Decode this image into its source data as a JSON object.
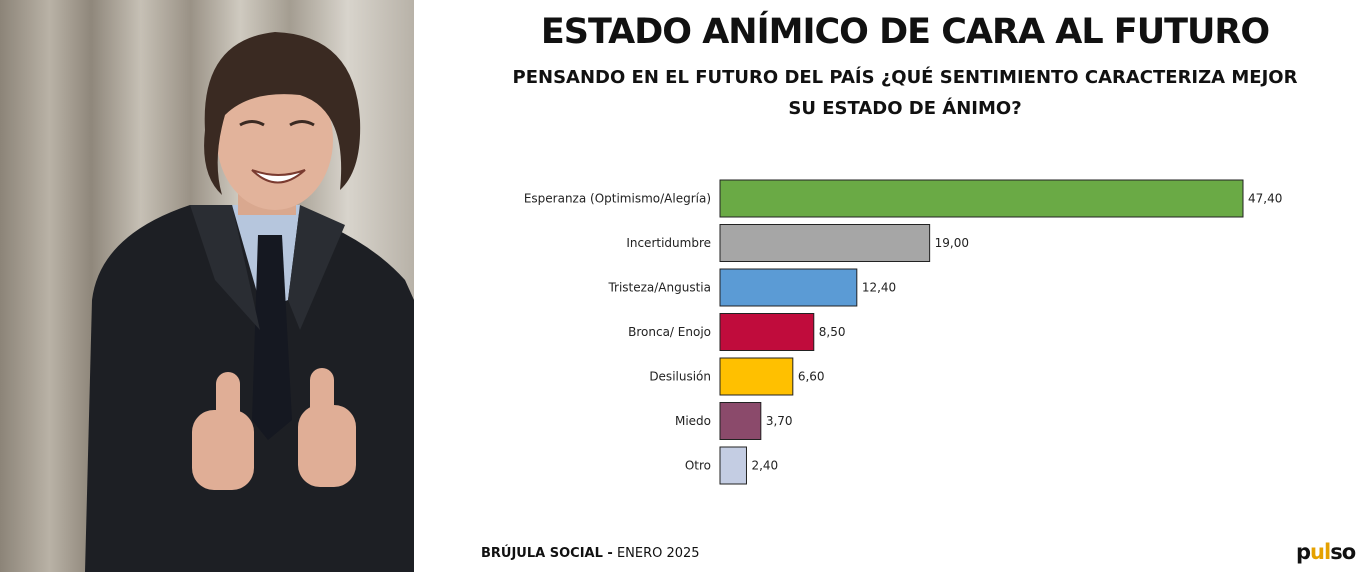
{
  "header": {
    "title": "ESTADO ANÍMICO DE CARA AL FUTURO",
    "subtitle_line1": "PENSANDO EN EL FUTURO DEL PAÍS ¿QUÉ SENTIMIENTO CARACTERIZA MEJOR",
    "subtitle_line2": "SU ESTADO DE ÁNIMO?"
  },
  "footer": {
    "source_bold": "BRÚJULA SOCIAL -",
    "source_date": "ENERO 2025",
    "logo_a": "p",
    "logo_pulse": "ul",
    "logo_b": "so"
  },
  "colors": {
    "bar_border": "#222222"
  },
  "chart_data": {
    "type": "bar",
    "orientation": "horizontal",
    "categories": [
      "Esperanza (Optimismo/Alegría)",
      "Incertidumbre",
      "Tristeza/Angustia",
      "Bronca/ Enojo",
      "Desilusión",
      "Miedo",
      "Otro"
    ],
    "values": [
      47.4,
      19.0,
      12.4,
      8.5,
      6.6,
      3.7,
      2.4
    ],
    "value_labels": [
      "47,40",
      "19,00",
      "12,40",
      "8,50",
      "6,60",
      "3,70",
      "2,40"
    ],
    "bar_colors": [
      "#6aaa45",
      "#a6a6a6",
      "#5b9bd5",
      "#c00c3c",
      "#ffc000",
      "#8b4a6b",
      "#c4cde3"
    ],
    "xlim": [
      0,
      47.4
    ],
    "grid": false,
    "legend": "none"
  }
}
